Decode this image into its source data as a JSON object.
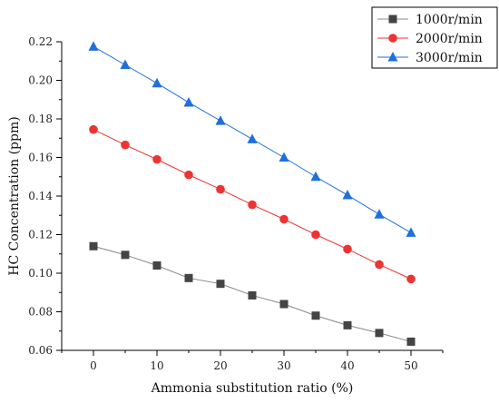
{
  "chart_data": {
    "type": "line",
    "title": "",
    "xlabel": "Ammonia substitution ratio (%)",
    "ylabel": "HC Concentration (ppm)",
    "xlim": [
      -5,
      55
    ],
    "ylim": [
      0.06,
      0.22
    ],
    "xticks": [
      0,
      10,
      20,
      30,
      40,
      50
    ],
    "yticks": [
      0.06,
      0.08,
      0.1,
      0.12,
      0.14,
      0.16,
      0.18,
      0.2,
      0.22
    ],
    "ytick_labels": [
      "0.06",
      "0.08",
      "0.10",
      "0.12",
      "0.14",
      "0.16",
      "0.18",
      "0.20",
      "0.22"
    ],
    "grid": false,
    "legend_position": "top-right",
    "x": [
      0,
      5,
      10,
      15,
      20,
      25,
      30,
      35,
      40,
      45,
      50
    ],
    "series": [
      {
        "name": "1000r/min",
        "marker": "square",
        "color": "#444444",
        "line_color": "#888888",
        "values": [
          0.114,
          0.1095,
          0.104,
          0.0975,
          0.0945,
          0.0885,
          0.084,
          0.078,
          0.073,
          0.069,
          0.0645
        ]
      },
      {
        "name": "2000r/min",
        "marker": "circle",
        "color": "#ee3333",
        "line_color": "#ee3333",
        "values": [
          0.1745,
          0.1665,
          0.159,
          0.151,
          0.1435,
          0.1355,
          0.128,
          0.12,
          0.1125,
          0.1045,
          0.097
        ]
      },
      {
        "name": "3000r/min",
        "marker": "triangle",
        "color": "#1f6fdc",
        "line_color": "#1f6fdc",
        "values": [
          0.2175,
          0.208,
          0.1985,
          0.1885,
          0.179,
          0.1695,
          0.16,
          0.15,
          0.1405,
          0.1305,
          0.121
        ]
      }
    ]
  }
}
